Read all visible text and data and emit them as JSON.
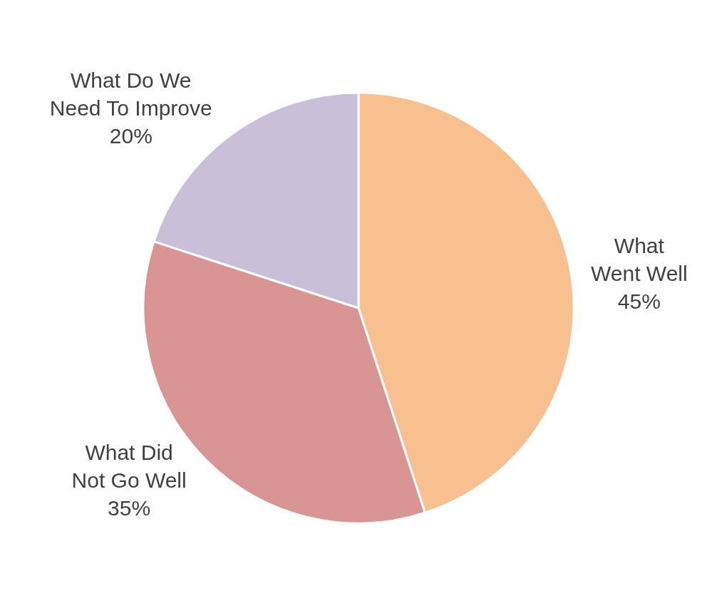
{
  "chart_data": {
    "type": "pie",
    "categories": [
      "What Went Well",
      "What Did Not Go Well",
      "What Do We Need To Improve"
    ],
    "values": [
      45,
      35,
      20
    ],
    "value_labels": [
      "45%",
      "35%",
      "20%"
    ],
    "colors": [
      "#f8bf8f",
      "#d99594",
      "#c9bfd9"
    ],
    "legend": false
  }
}
